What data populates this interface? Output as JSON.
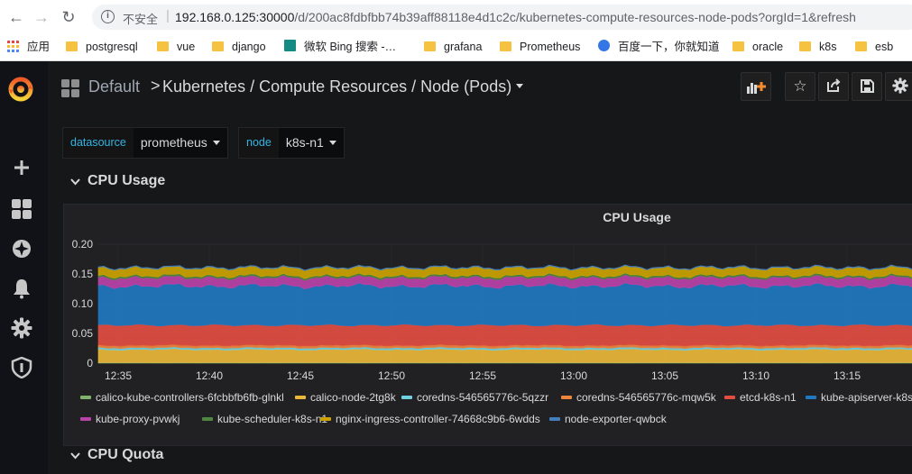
{
  "browser": {
    "insecure_label": "不安全",
    "url_host": "192.168.0.125:30000",
    "url_path": "/d/200ac8fdbfbb74b39aff88118e4d1c2c/kubernetes-compute-resources-node-pods?orgId=1&refresh",
    "bookmarks": [
      {
        "label": "应用",
        "icon": "apps-grid-icon"
      },
      {
        "label": "postgresql",
        "icon": "folder-icon"
      },
      {
        "label": "vue",
        "icon": "folder-icon"
      },
      {
        "label": "django",
        "icon": "folder-icon"
      },
      {
        "label": "微软 Bing 搜索 -…",
        "icon": "bing-icon"
      },
      {
        "label": "grafana",
        "icon": "folder-icon"
      },
      {
        "label": "Prometheus",
        "icon": "folder-icon"
      },
      {
        "label": "百度一下，你就知道",
        "icon": "baidu-icon"
      },
      {
        "label": "oracle",
        "icon": "folder-icon"
      },
      {
        "label": "k8s",
        "icon": "folder-icon"
      },
      {
        "label": "esb",
        "icon": "folder-icon"
      }
    ]
  },
  "grafana": {
    "breadcrumb_folder": "Default",
    "breadcrumb_separator": ">",
    "dashboard_title": "Kubernetes / Compute Resources / Node (Pods)",
    "variables": [
      {
        "label": "datasource",
        "value": "prometheus"
      },
      {
        "label": "node",
        "value": "k8s-n1"
      }
    ],
    "rows": [
      {
        "title": "CPU Usage"
      },
      {
        "title": "CPU Quota"
      }
    ],
    "panel_title": "CPU Usage",
    "colors": {
      "background": "#161719",
      "accent": "#33b5e5"
    }
  },
  "chart_data": {
    "type": "area",
    "stacked": true,
    "title": "CPU Usage",
    "x_ticks": [
      "12:35",
      "12:40",
      "12:45",
      "12:50",
      "12:55",
      "13:00",
      "13:05",
      "13:10",
      "13:15"
    ],
    "y_ticks": [
      "0",
      "0.05",
      "0.10",
      "0.15",
      "0.20"
    ],
    "ylim": [
      0,
      0.2
    ],
    "legend_placement": "bottom",
    "series": [
      {
        "name": "calico-kube-controllers-6fcbbfb6fb-glnkl",
        "color": "#7eb26d",
        "value": 0.001
      },
      {
        "name": "calico-node-2tg8k",
        "color": "#eab839",
        "value": 0.022
      },
      {
        "name": "coredns-546565776c-5qzzr",
        "color": "#6ed0e0",
        "value": 0.003
      },
      {
        "name": "coredns-546565776c-mqw5k",
        "color": "#ef843c",
        "value": 0.004
      },
      {
        "name": "etcd-k8s-n1",
        "color": "#e24d42",
        "value": 0.034
      },
      {
        "name": "kube-apiserver-k8s-",
        "color": "#1f78c1",
        "value": 0.066
      },
      {
        "name": "kube-proxy-pvwkj",
        "color": "#ba43a9",
        "value": 0.014
      },
      {
        "name": "kube-scheduler-k8s-n1",
        "color": "#508642",
        "value": 0.003
      },
      {
        "name": "nginx-ingress-controller-74668c9b6-6wdds",
        "color": "#cca300",
        "value": 0.013
      },
      {
        "name": "node-exporter-qwbck",
        "color": "#447ebc",
        "value": 0.001
      }
    ]
  }
}
